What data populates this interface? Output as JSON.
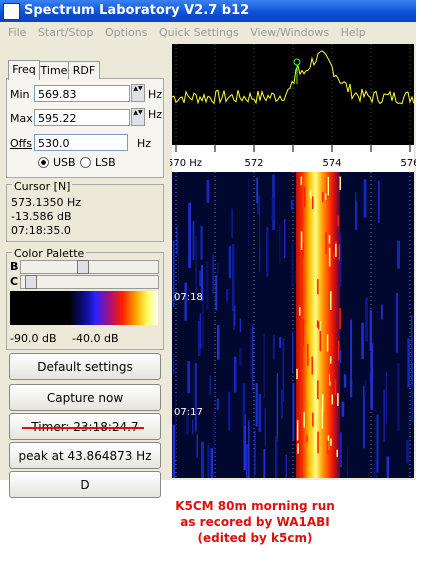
{
  "window": {
    "title": "Spectrum Laboratory V2.7 b12"
  },
  "menu": [
    "File",
    "Start/Stop",
    "Options",
    "Quick Settings",
    "View/Windows",
    "Help"
  ],
  "tabs": [
    "Freq",
    "Time",
    "RDF"
  ],
  "freq_settings": {
    "min_label": "Min",
    "min": "569.83",
    "max_label": "Max",
    "max": "595.22",
    "offs_label": "Offs",
    "offs": "530.0",
    "unit": "Hz",
    "usb": "USB",
    "lsb": "LSB"
  },
  "cursor": {
    "title": "Cursor [N]",
    "freq": "573.1350 Hz",
    "level": "-13.586 dB",
    "time": "07:18:35.0"
  },
  "palette": {
    "title": "Color Palette",
    "b": "B",
    "c": "C",
    "min": "-90.0 dB",
    "max": "-40.0 dB"
  },
  "buttons": [
    "Default settings",
    "Capture now",
    "Timer: 23:18:24.7",
    "peak at 43.864873 Hz",
    "D"
  ],
  "spectrum": {
    "freq_labels": [
      "570 Hz",
      "572",
      "574",
      "576"
    ]
  },
  "waterfall": {
    "time_labels": [
      "07:18",
      "07:17"
    ]
  },
  "caption": [
    "K5CM 80m morning run",
    "as recored by WA1ABI",
    "(edited by k5cm)"
  ]
}
